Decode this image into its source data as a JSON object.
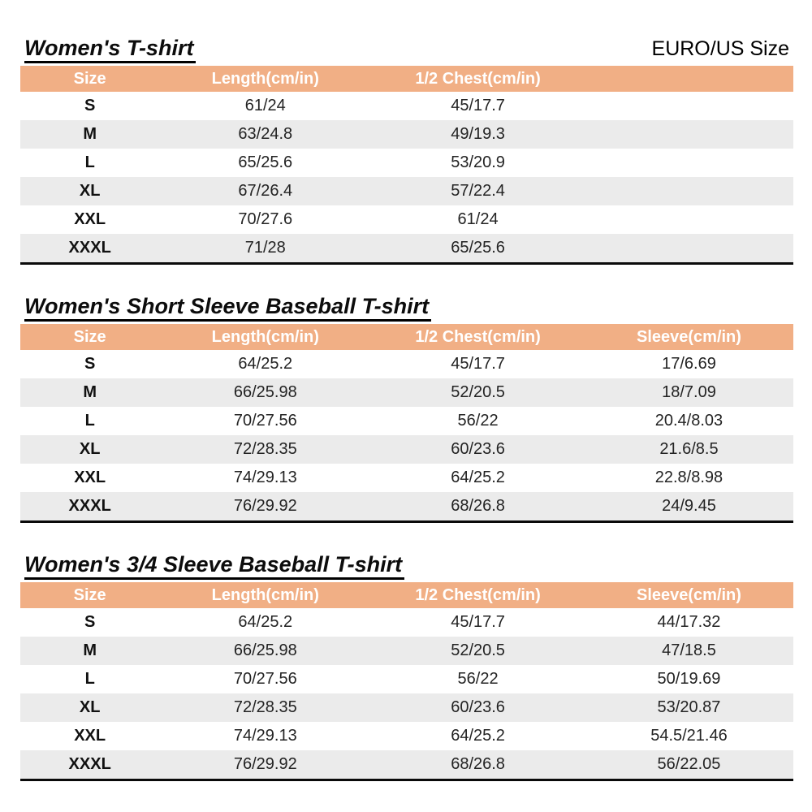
{
  "page": {
    "euro_us_label": "EURO/US Size"
  },
  "colors": {
    "header_bg": "#F1AF85",
    "stripe_bg": "#EBEBEB",
    "header_text": "#FFFFFF",
    "text": "#232323"
  },
  "tables": [
    {
      "title": "Women's T-shirt",
      "columns": [
        "Size",
        "Length(cm/in)",
        "1/2 Chest(cm/in)",
        ""
      ],
      "rows": [
        [
          "S",
          "61/24",
          "45/17.7",
          ""
        ],
        [
          "M",
          "63/24.8",
          "49/19.3",
          ""
        ],
        [
          "L",
          "65/25.6",
          "53/20.9",
          ""
        ],
        [
          "XL",
          "67/26.4",
          "57/22.4",
          ""
        ],
        [
          "XXL",
          "70/27.6",
          "61/24",
          ""
        ],
        [
          "XXXL",
          "71/28",
          "65/25.6",
          ""
        ]
      ]
    },
    {
      "title": "Women's Short Sleeve Baseball T-shirt",
      "columns": [
        "Size",
        "Length(cm/in)",
        "1/2 Chest(cm/in)",
        "Sleeve(cm/in)"
      ],
      "rows": [
        [
          "S",
          "64/25.2",
          "45/17.7",
          "17/6.69"
        ],
        [
          "M",
          "66/25.98",
          "52/20.5",
          "18/7.09"
        ],
        [
          "L",
          "70/27.56",
          "56/22",
          "20.4/8.03"
        ],
        [
          "XL",
          "72/28.35",
          "60/23.6",
          "21.6/8.5"
        ],
        [
          "XXL",
          "74/29.13",
          "64/25.2",
          "22.8/8.98"
        ],
        [
          "XXXL",
          "76/29.92",
          "68/26.8",
          "24/9.45"
        ]
      ]
    },
    {
      "title": "Women's 3/4 Sleeve Baseball T-shirt",
      "columns": [
        "Size",
        "Length(cm/in)",
        "1/2 Chest(cm/in)",
        "Sleeve(cm/in)"
      ],
      "rows": [
        [
          "S",
          "64/25.2",
          "45/17.7",
          "44/17.32"
        ],
        [
          "M",
          "66/25.98",
          "52/20.5",
          "47/18.5"
        ],
        [
          "L",
          "70/27.56",
          "56/22",
          "50/19.69"
        ],
        [
          "XL",
          "72/28.35",
          "60/23.6",
          "53/20.87"
        ],
        [
          "XXL",
          "74/29.13",
          "64/25.2",
          "54.5/21.46"
        ],
        [
          "XXXL",
          "76/29.92",
          "68/26.8",
          "56/22.05"
        ]
      ]
    }
  ]
}
